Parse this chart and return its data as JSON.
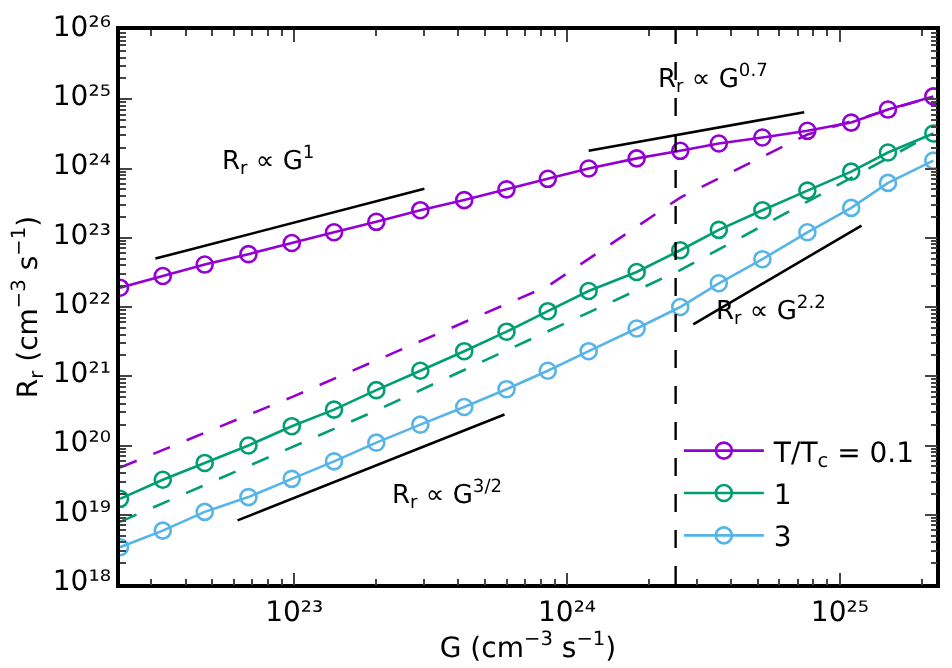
{
  "chart_data": {
    "type": "line",
    "xlabel": "G (cm$^{−3}$ s$^{−1}$)",
    "ylabel": "R$_{r}$ (cm$^{−3}$ s$^{−1}$)",
    "log": "xy",
    "xlim": [
      2.3e+22,
      2.25e+25
    ],
    "ylim": [
      1e+18,
      1e+26
    ],
    "xticks": [
      {
        "value": 1e+23,
        "label": "10²³"
      },
      {
        "value": 1e+24,
        "label": "10²⁴"
      },
      {
        "value": 1e+25,
        "label": "10²⁵"
      }
    ],
    "yticks": [
      {
        "value": 1e+18,
        "label": "10¹⁸"
      },
      {
        "value": 1e+19,
        "label": "10¹⁹"
      },
      {
        "value": 1e+20,
        "label": "10²⁰"
      },
      {
        "value": 1e+21,
        "label": "10²¹"
      },
      {
        "value": 1e+22,
        "label": "10²²"
      },
      {
        "value": 1e+23,
        "label": "10²³"
      },
      {
        "value": 1e+24,
        "label": "10²⁴"
      },
      {
        "value": 1e+25,
        "label": "10²⁵"
      },
      {
        "value": 1e+26,
        "label": "10²⁶"
      }
    ],
    "x": [
      2.3e+22,
      3.3e+22,
      4.7e+22,
      6.8e+22,
      9.8e+22,
      1.4e+23,
      2e+23,
      2.9e+23,
      4.2e+23,
      6e+23,
      8.5e+23,
      1.2e+24,
      1.8e+24,
      2.6e+24,
      3.6e+24,
      5.2e+24,
      7.6e+24,
      1.1e+25,
      1.5e+25,
      2.2e+25
    ],
    "legend": "bottom right",
    "marker": "circle",
    "line_style": "solid",
    "series": [
      {
        "name": "T/T$_{c}$ = 0.1",
        "color": "#9400d3",
        "values": [
          1.9e+22,
          2.8e+22,
          4.1e+22,
          5.8e+22,
          8.4e+22,
          1.2e+23,
          1.7e+23,
          2.5e+23,
          3.5e+23,
          5e+23,
          7.1e+23,
          1e+24,
          1.4e+24,
          1.8e+24,
          2.3e+24,
          2.8e+24,
          3.5e+24,
          4.6e+24,
          7.1e+24,
          1.1e+25
        ]
      },
      {
        "name": "1",
        "color": "#009e73",
        "values": [
          1.7e+19,
          3.2e+19,
          5.6e+19,
          1e+20,
          1.9e+20,
          3.3e+20,
          6.3e+20,
          1.2e+21,
          2.3e+21,
          4.4e+21,
          8.7e+21,
          1.7e+22,
          3.2e+22,
          6.6e+22,
          1.3e+23,
          2.5e+23,
          4.8e+23,
          9e+23,
          1.7e+24,
          3.2e+24
        ]
      },
      {
        "name": "3",
        "color": "#56b4e9",
        "values": [
          3.4e+18,
          5.9e+18,
          1.1e+19,
          1.8e+19,
          3.3e+19,
          5.9e+19,
          1.1e+20,
          2e+20,
          3.6e+20,
          6.5e+20,
          1.2e+21,
          2.3e+21,
          4.9e+21,
          1e+22,
          2.2e+22,
          4.9e+22,
          1.2e+23,
          2.7e+23,
          6.2e+23,
          1.3e+24
        ]
      },
      {
        "color": "#9400d3",
        "marker": "none",
        "line_style": "dashed",
        "x": [
          2.3e+22,
          9.8e+22,
          2.9e+23,
          8.5e+23,
          2.6e+24,
          7.6e+24,
          2.2e+25
        ],
        "values": [
          4.8e+19,
          5e+20,
          3.2e+21,
          2e+22,
          3.8e+23,
          3.1e+24,
          1.1e+25
        ]
      },
      {
        "color": "#009e73",
        "marker": "none",
        "line_style": "dashed",
        "x": [
          2.3e+22,
          2e+23,
          2.6e+24,
          2.2e+25
        ],
        "values": [
          7.9e+18,
          3.2e+20,
          3.4e+22,
          3.2e+24
        ]
      },
      {
        "color": "#000000",
        "marker": "none",
        "x": [
          3.1e+22,
          3e+23
        ],
        "values": [
          5e+22,
          5.1e+23
        ]
      },
      {
        "color": "#000000",
        "marker": "none",
        "x": [
          1.2e+24,
          7.4e+24
        ],
        "values": [
          1.8e+24,
          6.5e+24
        ]
      },
      {
        "color": "#000000",
        "marker": "none",
        "x": [
          2.9e+24,
          1.2e+25
        ],
        "values": [
          5.6e+21,
          1.5e+23
        ]
      },
      {
        "color": "#000000",
        "marker": "none",
        "x": [
          6.2e+22,
          5.9e+23
        ],
        "values": [
          8.3e+18,
          2.8e+20
        ]
      }
    ],
    "ref_lines": [
      {
        "axis": "x",
        "value": 2.5e+24,
        "color": "#000000",
        "line_style": "dashed"
      }
    ],
    "annotations": [
      "R$_{r}$ ∝ G$^{1}$",
      "R$_{r}$ ∝ G$^{0.7}$",
      "R$_{r}$ ∝ G$^{2.2}$",
      "R$_{r}$ ∝ G$^{3/2}$"
    ]
  }
}
